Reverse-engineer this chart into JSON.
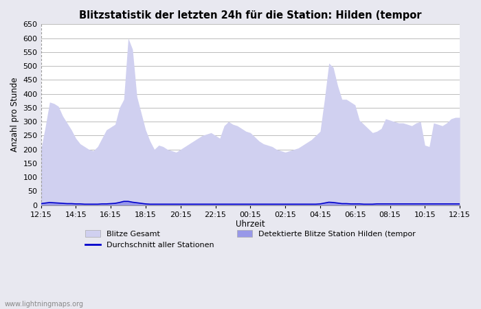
{
  "title": "Blitzstatistik der letzten 24h für die Station: Hilden (tempor",
  "xlabel": "Uhrzeit",
  "ylabel": "Anzahl pro Stunde",
  "ylim": [
    0,
    650
  ],
  "yticks": [
    0,
    50,
    100,
    150,
    200,
    250,
    300,
    350,
    400,
    450,
    500,
    550,
    600,
    650
  ],
  "xtick_labels": [
    "12:15",
    "14:15",
    "16:15",
    "18:15",
    "20:15",
    "22:15",
    "00:15",
    "02:15",
    "04:15",
    "06:15",
    "08:15",
    "10:15",
    "12:15"
  ],
  "bg_color": "#e8e8f0",
  "plot_bg_color": "#ffffff",
  "area_color_gesamt": "#d0d0f0",
  "area_color_detektiert": "#9898e8",
  "line_color": "#0000cc",
  "watermark": "www.lightningmaps.org",
  "legend": [
    {
      "label": "Blitze Gesamt",
      "color": "#d0d0f0",
      "type": "patch"
    },
    {
      "label": "Detektierte Blitze Station Hilden (tempor",
      "color": "#9898e8",
      "type": "patch"
    },
    {
      "label": "Durchschnitt aller Stationen",
      "color": "#0000cc",
      "type": "line"
    }
  ],
  "gesamt_values": [
    200,
    280,
    370,
    365,
    355,
    320,
    295,
    270,
    240,
    220,
    210,
    200,
    195,
    210,
    240,
    270,
    280,
    290,
    350,
    380,
    600,
    560,
    390,
    330,
    270,
    230,
    200,
    215,
    210,
    200,
    195,
    190,
    200,
    210,
    220,
    230,
    240,
    250,
    255,
    260,
    250,
    240,
    285,
    300,
    290,
    285,
    275,
    265,
    260,
    245,
    230,
    220,
    215,
    210,
    200,
    195,
    190,
    195,
    200,
    205,
    215,
    225,
    235,
    250,
    265,
    380,
    510,
    495,
    430,
    380,
    380,
    370,
    360,
    305,
    290,
    275,
    260,
    265,
    275,
    310,
    305,
    300,
    295,
    295,
    290,
    285,
    295,
    300,
    215,
    210,
    295,
    290,
    285,
    295,
    310,
    315,
    315
  ],
  "detektiert_values": [
    5,
    8,
    10,
    9,
    8,
    7,
    6,
    5,
    4,
    4,
    4,
    3,
    3,
    3,
    4,
    5,
    6,
    7,
    10,
    15,
    15,
    12,
    9,
    7,
    5,
    4,
    3,
    3,
    3,
    3,
    3,
    3,
    3,
    3,
    3,
    3,
    3,
    4,
    4,
    4,
    3,
    3,
    4,
    4,
    4,
    3,
    3,
    3,
    3,
    3,
    3,
    3,
    3,
    3,
    3,
    3,
    3,
    3,
    3,
    3,
    3,
    3,
    3,
    4,
    4,
    8,
    12,
    10,
    8,
    6,
    5,
    5,
    5,
    4,
    4,
    4,
    4,
    4,
    4,
    4,
    4,
    4,
    4,
    4,
    4,
    4,
    4,
    4,
    4,
    4,
    4,
    4,
    4,
    4,
    4,
    4,
    4
  ],
  "avg_values": [
    5,
    7,
    9,
    8,
    7,
    6,
    5,
    5,
    4,
    4,
    3,
    3,
    3,
    3,
    4,
    4,
    5,
    6,
    9,
    13,
    13,
    10,
    8,
    6,
    4,
    3,
    3,
    3,
    3,
    3,
    3,
    3,
    3,
    3,
    3,
    3,
    3,
    3,
    3,
    3,
    3,
    3,
    3,
    3,
    3,
    3,
    3,
    3,
    3,
    3,
    3,
    3,
    3,
    3,
    3,
    3,
    3,
    3,
    3,
    3,
    3,
    3,
    3,
    3,
    4,
    7,
    10,
    9,
    7,
    5,
    5,
    4,
    4,
    4,
    3,
    3,
    3,
    4,
    4,
    4,
    4,
    4,
    4,
    4,
    4,
    4,
    4,
    4,
    4,
    4,
    4,
    4,
    4,
    4,
    4,
    4,
    4
  ]
}
